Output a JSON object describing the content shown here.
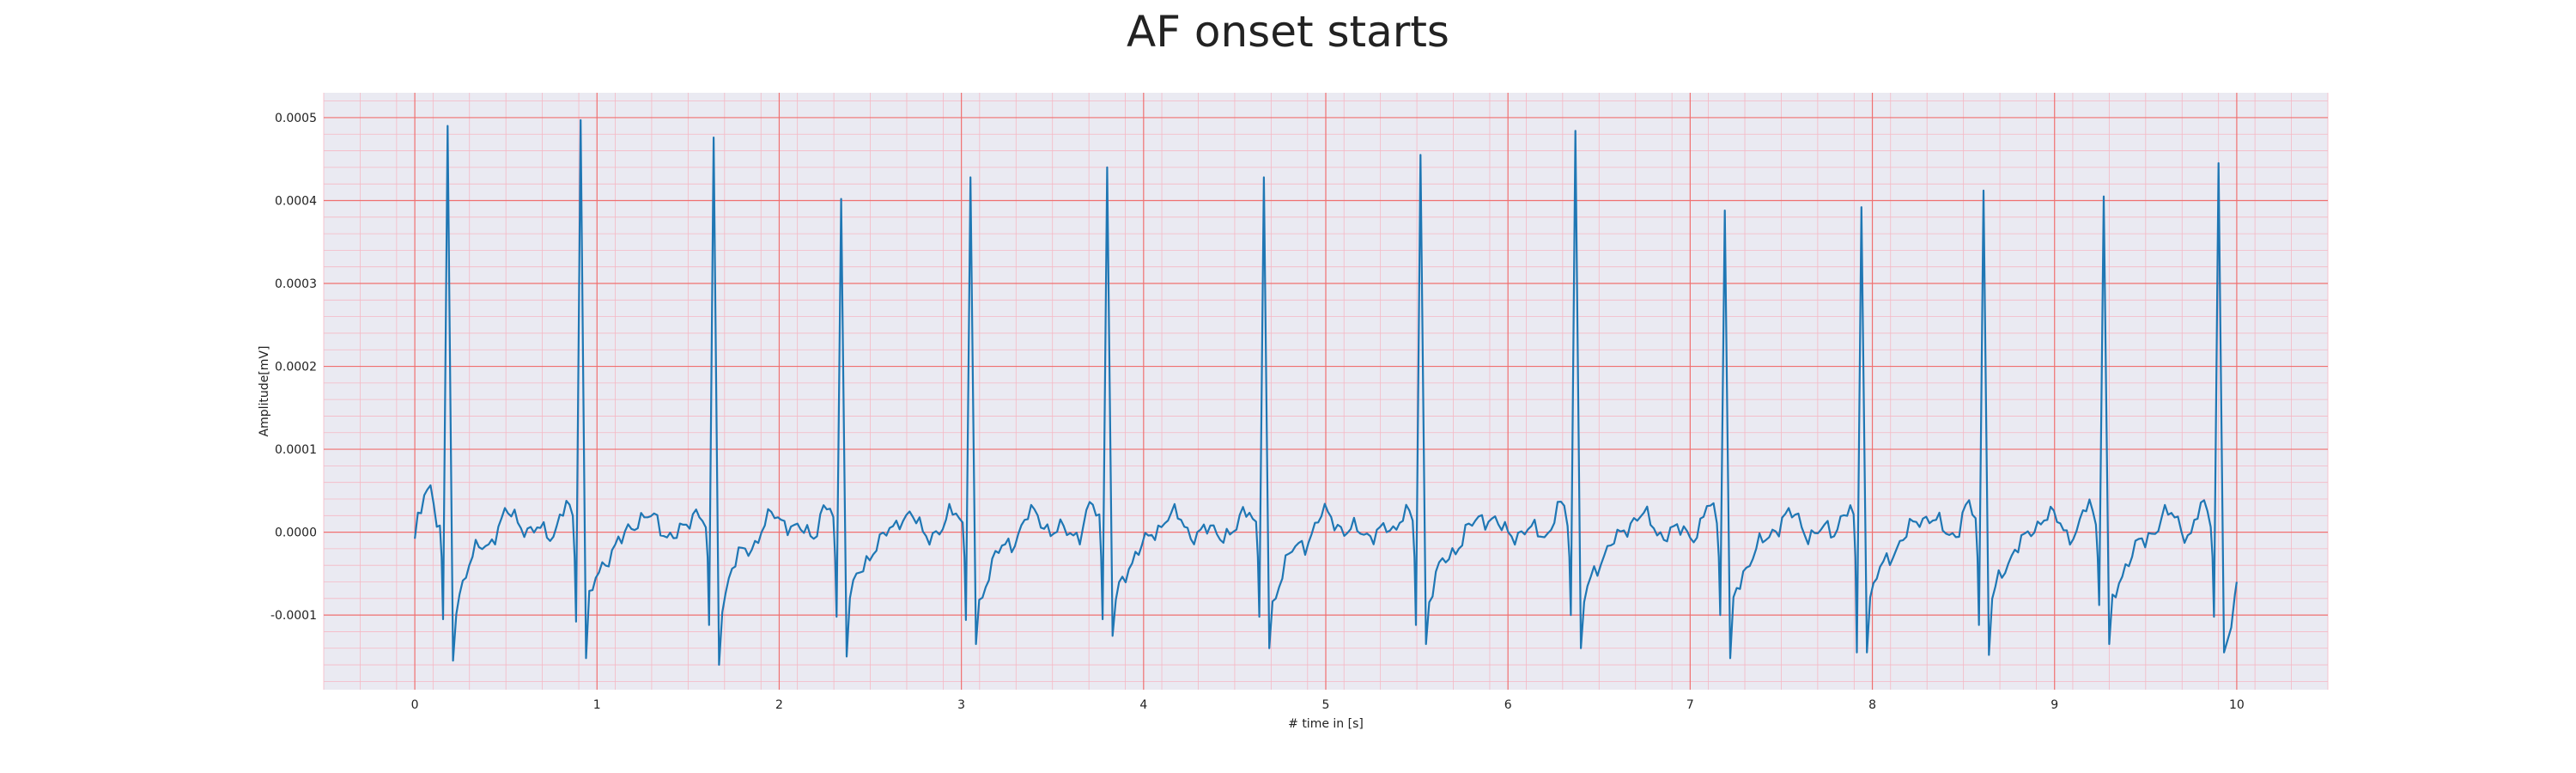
{
  "chart_data": {
    "type": "line",
    "title": "AF onset starts",
    "xlabel": "# time in [s]",
    "ylabel": "Amplitude[mV]",
    "xlim": [
      -0.5,
      10.5
    ],
    "ylim": [
      -0.00019,
      0.00053
    ],
    "xticks": [
      0,
      1,
      2,
      3,
      4,
      5,
      6,
      7,
      8,
      9,
      10
    ],
    "xtick_labels": [
      "0",
      "1",
      "2",
      "3",
      "4",
      "5",
      "6",
      "7",
      "8",
      "9",
      "10"
    ],
    "yticks": [
      -0.0001,
      0.0,
      0.0001,
      0.0002,
      0.0003,
      0.0004,
      0.0005
    ],
    "ytick_labels": [
      "-0.0001",
      "0.0000",
      "0.0001",
      "0.0002",
      "0.0003",
      "0.0004",
      "0.0005"
    ],
    "grid": true,
    "minor_grid": true,
    "colors": {
      "line": "#1f77b4",
      "plot_bg": "#eaeaf2",
      "major_grid": "#f07070",
      "minor_grid": "#f5b8c4"
    },
    "r_peaks": [
      {
        "t": 0.18,
        "r": 0.00049,
        "q": -0.000105,
        "s": -0.000155
      },
      {
        "t": 0.91,
        "r": 0.000497,
        "q": -0.000108,
        "s": -0.000152
      },
      {
        "t": 1.64,
        "r": 0.000476,
        "q": -0.000112,
        "s": -0.00016
      },
      {
        "t": 2.34,
        "r": 0.000402,
        "q": -0.000102,
        "s": -0.00015
      },
      {
        "t": 3.05,
        "r": 0.000428,
        "q": -0.000106,
        "s": -0.000135
      },
      {
        "t": 3.8,
        "r": 0.00044,
        "q": -0.000105,
        "s": -0.000125
      },
      {
        "t": 4.66,
        "r": 0.000428,
        "q": -0.000102,
        "s": -0.00014
      },
      {
        "t": 5.52,
        "r": 0.000455,
        "q": -0.000112,
        "s": -0.000135
      },
      {
        "t": 6.37,
        "r": 0.000484,
        "q": -0.0001,
        "s": -0.00014
      },
      {
        "t": 7.19,
        "r": 0.000388,
        "q": -0.0001,
        "s": -0.000152
      },
      {
        "t": 7.94,
        "r": 0.000392,
        "q": -0.000145,
        "s": -0.000145
      },
      {
        "t": 8.61,
        "r": 0.000412,
        "q": -0.000112,
        "s": -0.000148
      },
      {
        "t": 9.27,
        "r": 0.000405,
        "q": -8.8e-05,
        "s": -0.000135
      },
      {
        "t": 9.9,
        "r": 0.000445,
        "q": -0.000102,
        "s": -0.000145
      }
    ],
    "start": {
      "t": 0.0,
      "y": -8e-06
    },
    "end": {
      "t": 10.0,
      "y": -6e-05
    }
  }
}
